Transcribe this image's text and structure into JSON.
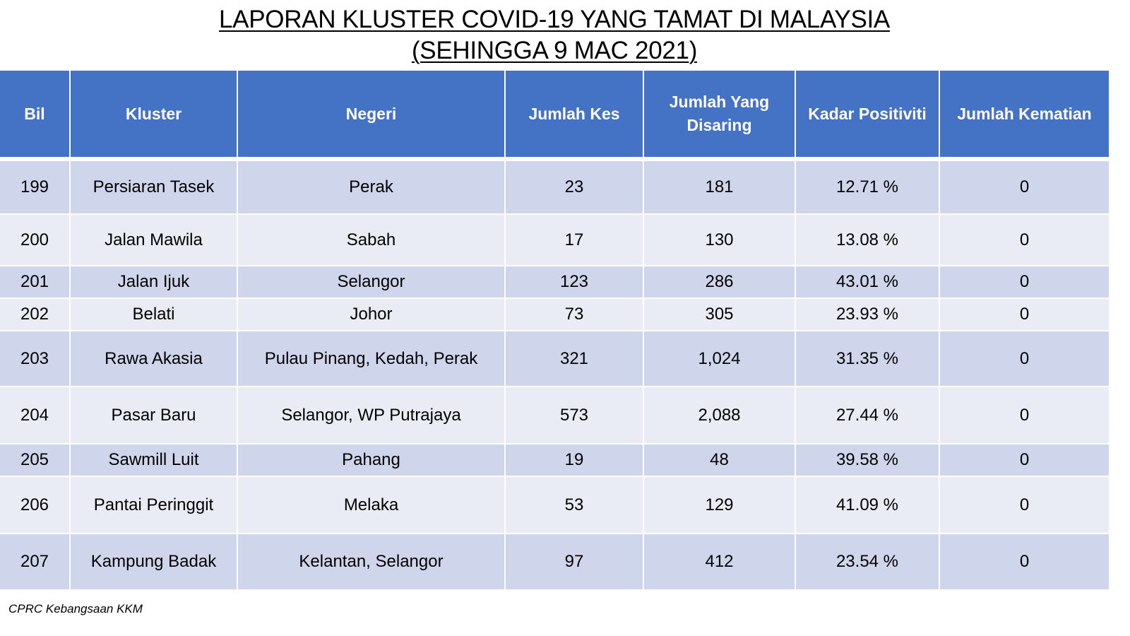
{
  "title": {
    "line1": "LAPORAN KLUSTER COVID-19 YANG TAMAT DI MALAYSIA",
    "line2": "(SEHINGGA  9 MAC 2021)"
  },
  "table": {
    "headers": [
      "Bil",
      "Kluster",
      "Negeri",
      "Jumlah Kes",
      "Jumlah Yang Disaring",
      "Kadar Positiviti",
      "Jumlah Kematian"
    ],
    "rows": [
      [
        "199",
        "Persiaran Tasek",
        "Perak",
        "23",
        "181",
        "12.71 %",
        "0"
      ],
      [
        "200",
        "Jalan Mawila",
        "Sabah",
        "17",
        "130",
        "13.08 %",
        "0"
      ],
      [
        "201",
        "Jalan Ijuk",
        "Selangor",
        "123",
        "286",
        "43.01 %",
        "0"
      ],
      [
        "202",
        "Belati",
        "Johor",
        "73",
        "305",
        "23.93 %",
        "0"
      ],
      [
        "203",
        "Rawa Akasia",
        "Pulau Pinang, Kedah, Perak",
        "321",
        "1,024",
        "31.35 %",
        "0"
      ],
      [
        "204",
        "Pasar Baru",
        "Selangor, WP Putrajaya",
        "573",
        "2,088",
        "27.44 %",
        "0"
      ],
      [
        "205",
        "Sawmill Luit",
        "Pahang",
        "19",
        "48",
        "39.58 %",
        "0"
      ],
      [
        "206",
        "Pantai Peringgit",
        "Melaka",
        "53",
        "129",
        "41.09 %",
        "0"
      ],
      [
        "207",
        "Kampung Badak",
        "Kelantan, Selangor",
        "97",
        "412",
        "23.54 %",
        "0"
      ]
    ]
  },
  "footer": "CPRC Kebangsaan KKM",
  "colors": {
    "header_bg": "#4472c4",
    "row_odd": "#cfd5ea",
    "row_even": "#e9ebf5"
  }
}
